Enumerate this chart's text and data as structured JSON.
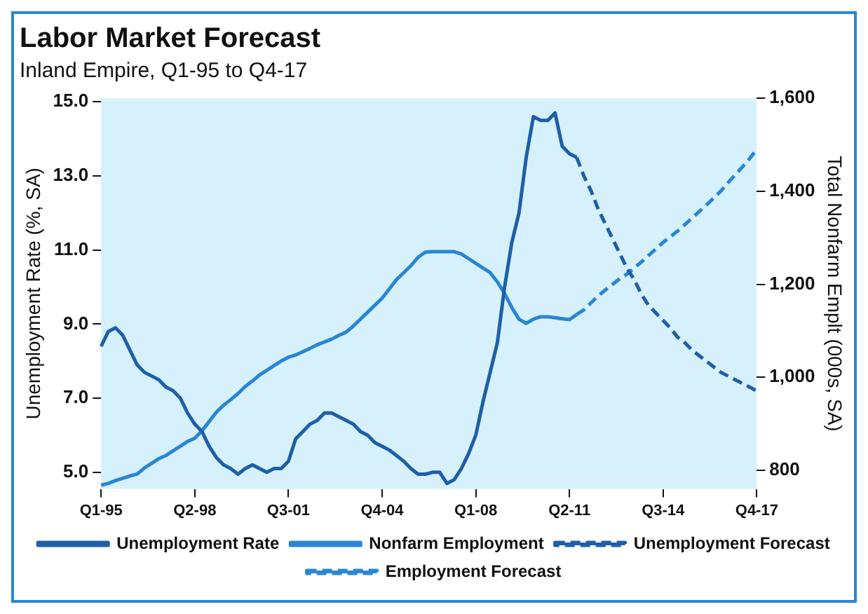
{
  "chart_data": {
    "type": "line",
    "title": "Labor Market Forecast",
    "subtitle": "Inland Empire, Q1-95 to Q4-17",
    "ylabel": "Unemployment Rate (%, SA)",
    "y2label": "Total Nonfarm Emplt (000s, SA)",
    "categories": [
      "Q1-95",
      null,
      null,
      null,
      null,
      null,
      null,
      null,
      null,
      null,
      null,
      null,
      null,
      "Q2-98",
      null,
      null,
      null,
      null,
      null,
      null,
      null,
      null,
      null,
      null,
      null,
      null,
      "Q3-01",
      null,
      null,
      null,
      null,
      null,
      null,
      null,
      null,
      null,
      null,
      null,
      null,
      "Q4-04",
      null,
      null,
      null,
      null,
      null,
      null,
      null,
      null,
      null,
      null,
      null,
      null,
      "Q1-08",
      null,
      null,
      null,
      null,
      null,
      null,
      null,
      null,
      null,
      null,
      null,
      null,
      "Q2-11",
      null,
      null,
      null,
      null,
      null,
      null,
      null,
      null,
      null,
      null,
      null,
      null,
      "Q3-14",
      null,
      null,
      null,
      null,
      null,
      null,
      null,
      null,
      null,
      null,
      null,
      null,
      "Q4-17"
    ],
    "series": [
      {
        "name": "Unemployment Rate",
        "color": "#1f5fa8",
        "line_style": "solid",
        "values": [
          8.4,
          8.8,
          8.9,
          8.7,
          8.3,
          7.9,
          7.7,
          7.6,
          7.5,
          7.3,
          7.2,
          7.0,
          6.6,
          6.3,
          6.1,
          5.7,
          5.4,
          5.2,
          5.1,
          4.95,
          5.1,
          5.2,
          5.1,
          5.0,
          5.1,
          5.1,
          5.3,
          5.9,
          6.1,
          6.3,
          6.4,
          6.6,
          6.6,
          6.5,
          6.4,
          6.3,
          6.1,
          6.0,
          5.8,
          5.7,
          5.6,
          5.45,
          5.3,
          5.1,
          4.95,
          4.95,
          5.0,
          5.0,
          4.7,
          4.8,
          5.1,
          5.5,
          6.0,
          6.9,
          7.7,
          8.5,
          10.0,
          11.2,
          12.0,
          13.5,
          14.6,
          14.5,
          14.5,
          14.7,
          13.8,
          13.6,
          13.5,
          null,
          null,
          null,
          null,
          null,
          null,
          null,
          null,
          null,
          null,
          null,
          null,
          null,
          null,
          null,
          null,
          null,
          null,
          null,
          null,
          null,
          null,
          null,
          null,
          null
        ]
      },
      {
        "name": "Nonfarm Employment",
        "color": "#2a86d4",
        "line_style": "solid",
        "axis": "y2",
        "values": [
          768,
          772,
          778,
          783,
          788,
          792,
          805,
          815,
          825,
          832,
          842,
          852,
          862,
          869,
          885,
          905,
          925,
          940,
          952,
          965,
          980,
          992,
          1005,
          1015,
          1025,
          1035,
          1043,
          1048,
          1055,
          1062,
          1070,
          1076,
          1082,
          1090,
          1097,
          1110,
          1125,
          1140,
          1155,
          1170,
          1190,
          1210,
          1225,
          1240,
          1258,
          1269,
          1270,
          1270,
          1270,
          1270,
          1265,
          1255,
          1245,
          1235,
          1225,
          1205,
          1180,
          1150,
          1125,
          1116,
          1125,
          1130,
          1130,
          1128,
          1126,
          1124,
          1135,
          null,
          null,
          null,
          null,
          null,
          null,
          null,
          null,
          null,
          null,
          null,
          null,
          null,
          null,
          null,
          null,
          null,
          null,
          null,
          null,
          null,
          null,
          null,
          null,
          null
        ]
      },
      {
        "name": "Unemployment Forecast",
        "color": "#1f5fa8",
        "line_style": "dashed",
        "values": [
          null,
          null,
          null,
          null,
          null,
          null,
          null,
          null,
          null,
          null,
          null,
          null,
          null,
          null,
          null,
          null,
          null,
          null,
          null,
          null,
          null,
          null,
          null,
          null,
          null,
          null,
          null,
          null,
          null,
          null,
          null,
          null,
          null,
          null,
          null,
          null,
          null,
          null,
          null,
          null,
          null,
          null,
          null,
          null,
          null,
          null,
          null,
          null,
          null,
          null,
          null,
          null,
          null,
          null,
          null,
          null,
          null,
          null,
          null,
          null,
          null,
          null,
          null,
          null,
          null,
          null,
          13.5,
          13.0,
          12.6,
          12.1,
          11.7,
          11.3,
          10.9,
          10.5,
          10.2,
          9.8,
          9.5,
          9.3,
          9.1,
          8.9,
          8.65,
          8.5,
          8.3,
          8.15,
          8.0,
          7.85,
          7.7,
          7.6,
          7.5,
          7.4,
          7.3,
          7.2
        ]
      },
      {
        "name": "Employment Forecast",
        "color": "#2a86d4",
        "line_style": "dashed",
        "axis": "y2",
        "values": [
          null,
          null,
          null,
          null,
          null,
          null,
          null,
          null,
          null,
          null,
          null,
          null,
          null,
          null,
          null,
          null,
          null,
          null,
          null,
          null,
          null,
          null,
          null,
          null,
          null,
          null,
          null,
          null,
          null,
          null,
          null,
          null,
          null,
          null,
          null,
          null,
          null,
          null,
          null,
          null,
          null,
          null,
          null,
          null,
          null,
          null,
          null,
          null,
          null,
          null,
          null,
          null,
          null,
          null,
          null,
          null,
          null,
          null,
          null,
          null,
          null,
          null,
          null,
          null,
          null,
          null,
          1135,
          1145,
          1160,
          1175,
          1188,
          1200,
          1212,
          1222,
          1235,
          1248,
          1262,
          1276,
          1290,
          1302,
          1314,
          1328,
          1342,
          1356,
          1370,
          1385,
          1400,
          1418,
          1435,
          1452,
          1470,
          1490
        ]
      }
    ],
    "ylim": [
      4.55,
      15.1
    ],
    "yticks": [
      {
        "value": 5,
        "label": "5.0"
      },
      {
        "value": 7,
        "label": "7.0"
      },
      {
        "value": 9,
        "label": "9.0"
      },
      {
        "value": 11,
        "label": "11.0"
      },
      {
        "value": 13,
        "label": "13.0"
      },
      {
        "value": 15,
        "label": "15.0"
      }
    ],
    "y2lim": [
      760,
      1600
    ],
    "y2ticks": [
      800,
      {
        "value": 1000,
        "label": "1,000"
      },
      {
        "value": 1200,
        "label": "1,200"
      },
      {
        "value": 1400,
        "label": "1,400"
      },
      {
        "value": 1600,
        "label": "1,600"
      }
    ],
    "grid": false,
    "legend": "bottom",
    "marker": "none"
  }
}
